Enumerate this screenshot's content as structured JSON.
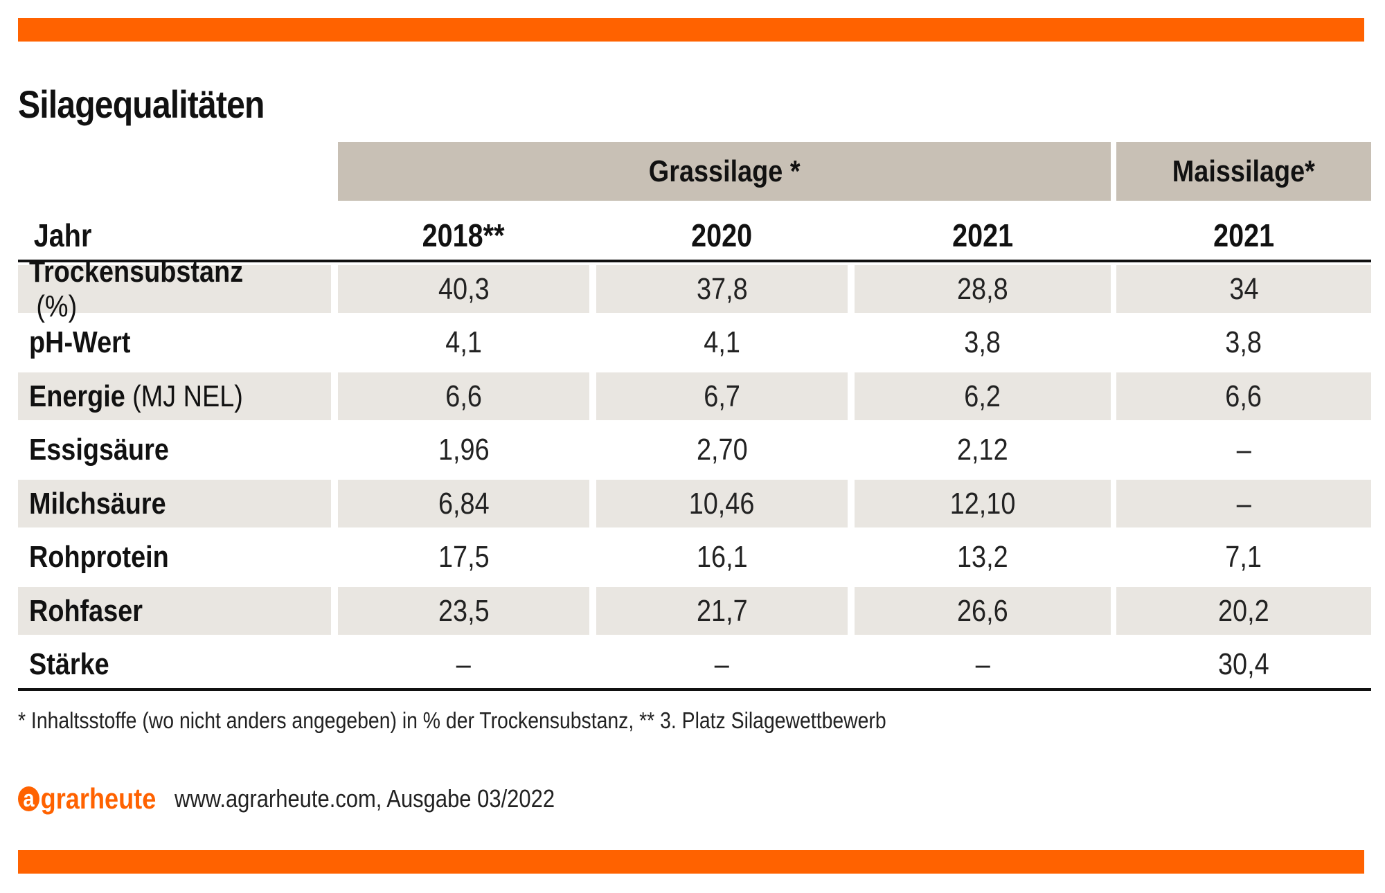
{
  "title": "Silagequalitäten",
  "chart_data": {
    "type": "table",
    "title": "Silagequalitäten",
    "groups": [
      {
        "name": "Grassilage *",
        "columns": [
          "2018**",
          "2020",
          "2021"
        ]
      },
      {
        "name": "Maissilage*",
        "columns": [
          "2021"
        ]
      }
    ],
    "header_label": "Jahr",
    "columns": [
      "2018**",
      "2020",
      "2021",
      "2021"
    ],
    "rows": [
      {
        "label": "Trockensubstanz",
        "unit": "(%)",
        "values": [
          "40,3",
          "37,8",
          "28,8",
          "34"
        ]
      },
      {
        "label": "pH-Wert",
        "unit": "",
        "values": [
          "4,1",
          "4,1",
          "3,8",
          "3,8"
        ]
      },
      {
        "label": "Energie",
        "unit": "(MJ NEL)",
        "values": [
          "6,6",
          "6,7",
          "6,2",
          "6,6"
        ]
      },
      {
        "label": "Essigsäure",
        "unit": "",
        "values": [
          "1,96",
          "2,70",
          "2,12",
          "–"
        ]
      },
      {
        "label": "Milchsäure",
        "unit": "",
        "values": [
          "6,84",
          "10,46",
          "12,10",
          "–"
        ]
      },
      {
        "label": "Rohprotein",
        "unit": "",
        "values": [
          "17,5",
          "16,1",
          "13,2",
          "7,1"
        ]
      },
      {
        "label": "Rohfaser",
        "unit": "",
        "values": [
          "23,5",
          "21,7",
          "26,6",
          "20,2"
        ]
      },
      {
        "label": "Stärke",
        "unit": "",
        "values": [
          "–",
          "–",
          "–",
          "30,4"
        ]
      }
    ]
  },
  "footnote": "* Inhaltsstoffe (wo nicht anders angegeben) in % der Trockensubstanz, ** 3. Platz Silagewettbewerb",
  "brand": {
    "logo_letter": "a",
    "logo_rest": "grarheute",
    "source": "www.agrarheute.com, Ausgabe 03/2022"
  },
  "colors": {
    "accent": "#ff6200",
    "group_header": "#c8c0b5",
    "row_shade": "#e9e6e1"
  }
}
